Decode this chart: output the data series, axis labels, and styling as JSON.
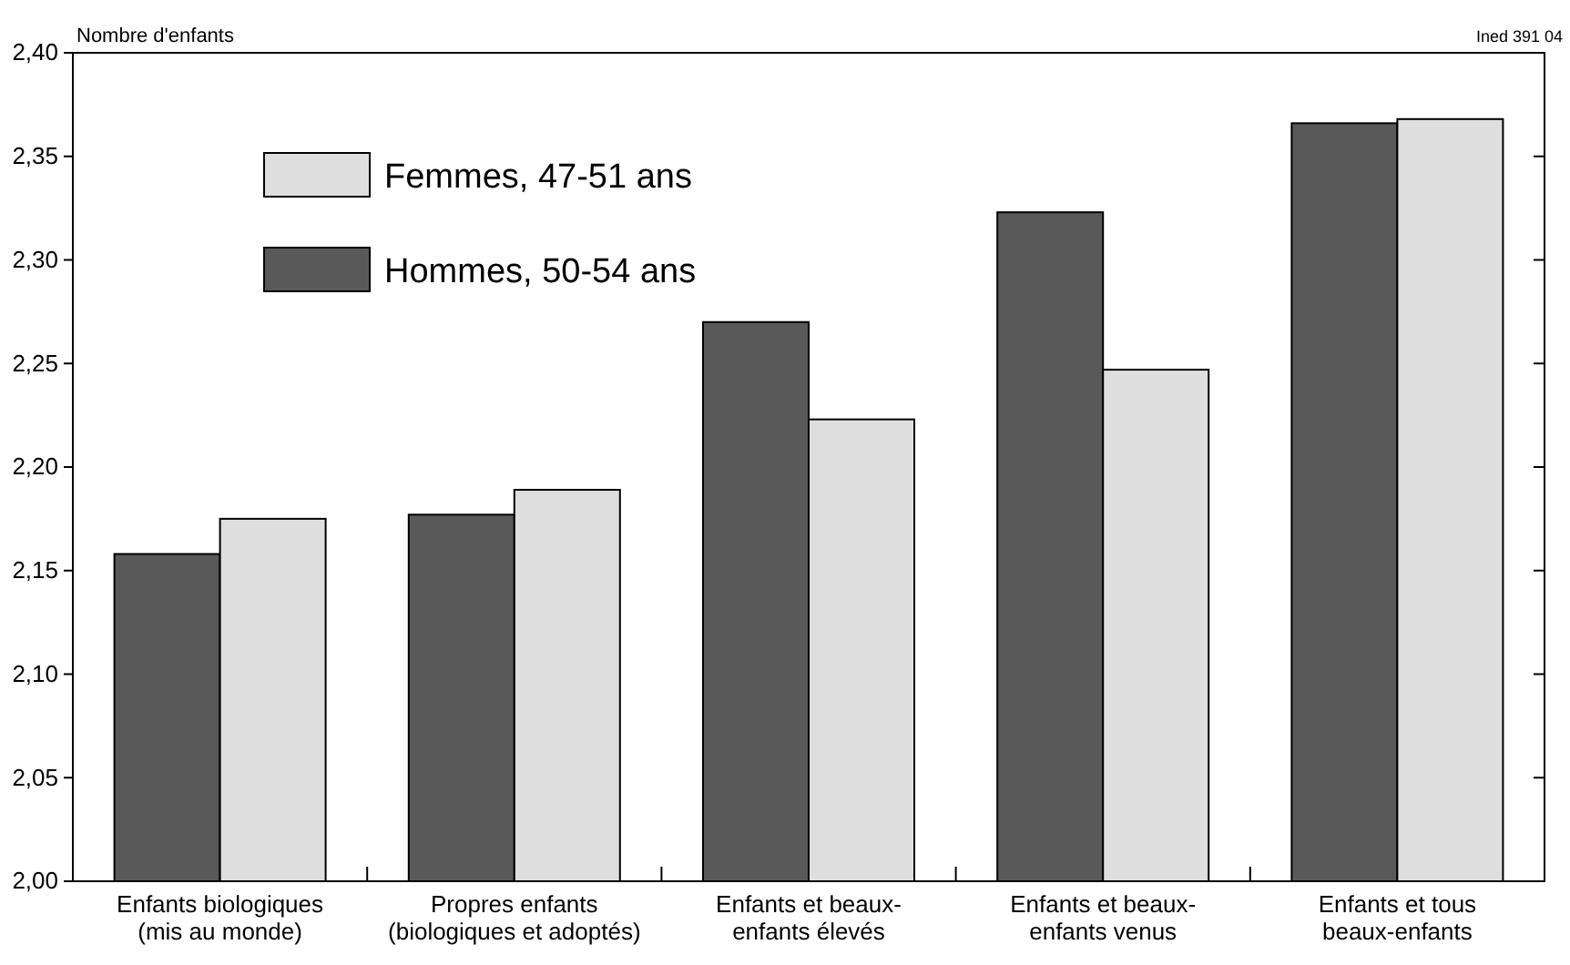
{
  "chart_data": {
    "type": "bar",
    "ylabel": "Nombre d'enfants",
    "categories": [
      "Enfants biologiques\n(mis au monde)",
      "Propres enfants\n(biologiques et adoptés)",
      "Enfants et beaux-\nenfants élevés",
      "Enfants et beaux-\nenfants venus",
      "Enfants et tous\nbeaux-enfants"
    ],
    "series": [
      {
        "name": "Hommes, 50-54 ans",
        "color": "#595959",
        "values": [
          2.158,
          2.177,
          2.27,
          2.323,
          2.366
        ]
      },
      {
        "name": "Femmes, 47-51 ans",
        "color": "#dedede",
        "values": [
          2.175,
          2.189,
          2.223,
          2.247,
          2.368
        ]
      }
    ],
    "ylim": [
      2.0,
      2.4
    ],
    "yticks": [
      {
        "value": 2.0,
        "label": "2,00"
      },
      {
        "value": 2.05,
        "label": "2,05"
      },
      {
        "value": 2.1,
        "label": "2,10"
      },
      {
        "value": 2.15,
        "label": "2,15"
      },
      {
        "value": 2.2,
        "label": "2,20"
      },
      {
        "value": 2.25,
        "label": "2,25"
      },
      {
        "value": 2.3,
        "label": "2,30"
      },
      {
        "value": 2.35,
        "label": "2,35"
      },
      {
        "value": 2.4,
        "label": "2,40"
      }
    ],
    "legend": "top left",
    "grid": false,
    "annotations": [
      "Ined 391 04"
    ]
  }
}
